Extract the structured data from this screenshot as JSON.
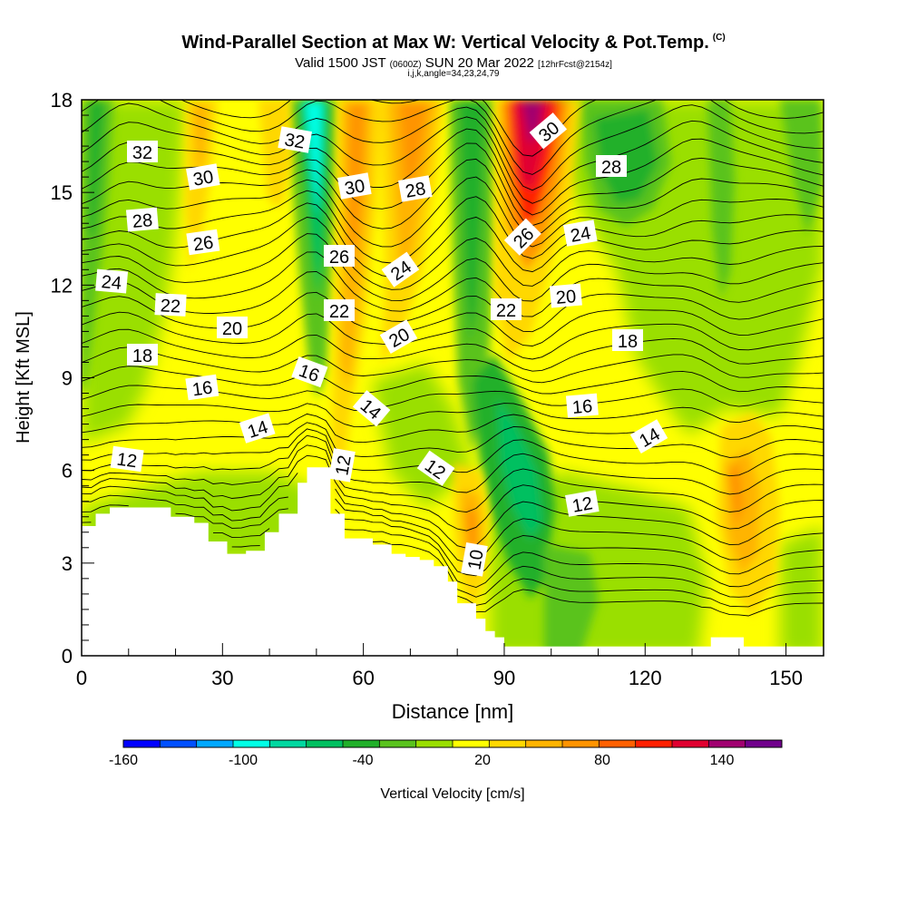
{
  "header": {
    "title": "Wind-Parallel Section at Max W: Vertical Velocity & Pot.Temp.",
    "copyright": "(C)",
    "valid_prefix": "Valid 1500 JST",
    "valid_utc": "(0600Z)",
    "valid_date": "SUN 20 Mar 2022",
    "forecast_info": "[12hrFcst@2154z]",
    "indices": "i,j,k,angle=34,23,24,79"
  },
  "chart_data": {
    "type": "heatmap",
    "xlabel": "Distance [nm]",
    "ylabel": "Height [Kft MSL]",
    "xlim": [
      0,
      158
    ],
    "ylim": [
      0,
      18
    ],
    "x_ticks": [
      "0",
      "30",
      "60",
      "90",
      "120",
      "150"
    ],
    "y_ticks": [
      "0",
      "3",
      "6",
      "9",
      "12",
      "15",
      "18"
    ],
    "colorbar": {
      "label": "Vertical Velocity [cm/s]",
      "tick_labels": [
        "-160",
        "-100",
        "-40",
        "20",
        "80",
        "140"
      ],
      "tick_values": [
        -160,
        -100,
        -40,
        20,
        80,
        140
      ],
      "range": [
        -160,
        170
      ],
      "step": 20,
      "colors": [
        "#0000ff",
        "#0050ff",
        "#00a8ff",
        "#00ffe6",
        "#00d8a0",
        "#00c060",
        "#21b02a",
        "#5ac31e",
        "#9adf00",
        "#ffff00",
        "#ffd800",
        "#ffb400",
        "#ff9400",
        "#ff6000",
        "#ff2000",
        "#e00030",
        "#a00070",
        "#70008c"
      ]
    },
    "theta_contour_labels": [
      "10",
      "12",
      "12",
      "12",
      "12",
      "14",
      "14",
      "14",
      "16",
      "16",
      "16",
      "18",
      "18",
      "20",
      "20",
      "20",
      "22",
      "22",
      "22",
      "24",
      "24",
      "24",
      "26",
      "26",
      "26",
      "28",
      "28",
      "28",
      "30",
      "30",
      "30",
      "32",
      "32"
    ],
    "velocity_features": [
      {
        "x_nm": 9,
        "z_kft": 14.5,
        "w_cms": -60
      },
      {
        "x_nm": 50,
        "z_kft": 14,
        "w_cms": -100
      },
      {
        "x_nm": 57,
        "z_kft": 12,
        "w_cms": 50
      },
      {
        "x_nm": 67,
        "z_kft": 14,
        "w_cms": 60
      },
      {
        "x_nm": 84,
        "z_kft": 14,
        "w_cms": -80
      },
      {
        "x_nm": 95,
        "z_kft": 15,
        "w_cms": 140
      },
      {
        "x_nm": 93,
        "z_kft": 5,
        "w_cms": -60
      },
      {
        "x_nm": 83,
        "z_kft": 4,
        "w_cms": 80
      },
      {
        "x_nm": 139,
        "z_kft": 5,
        "w_cms": 60
      },
      {
        "x_nm": 130,
        "z_kft": 16,
        "w_cms": -40
      }
    ],
    "terrain_kft": [
      [
        0,
        4.2
      ],
      [
        3,
        4.6
      ],
      [
        6,
        4.8
      ],
      [
        10,
        4.8
      ],
      [
        19,
        4.5
      ],
      [
        24,
        4.3
      ],
      [
        27,
        3.7
      ],
      [
        31,
        3.3
      ],
      [
        35,
        3.4
      ],
      [
        39,
        4
      ],
      [
        42,
        4.6
      ],
      [
        46,
        5.6
      ],
      [
        48,
        6.1
      ],
      [
        52,
        6.1
      ],
      [
        53,
        4.6
      ],
      [
        56,
        3.8
      ],
      [
        59,
        3.8
      ],
      [
        62,
        3.6
      ],
      [
        66,
        3.3
      ],
      [
        69,
        3.2
      ],
      [
        72,
        3.1
      ],
      [
        75,
        2.9
      ],
      [
        78,
        2.4
      ],
      [
        80,
        1.7
      ],
      [
        84,
        1.2
      ],
      [
        86,
        0.8
      ],
      [
        88,
        0.6
      ],
      [
        90,
        0.3
      ],
      [
        133,
        0.3
      ],
      [
        134,
        0.6
      ],
      [
        140,
        0.6
      ],
      [
        141,
        0.3
      ],
      [
        158,
        0.3
      ]
    ]
  }
}
